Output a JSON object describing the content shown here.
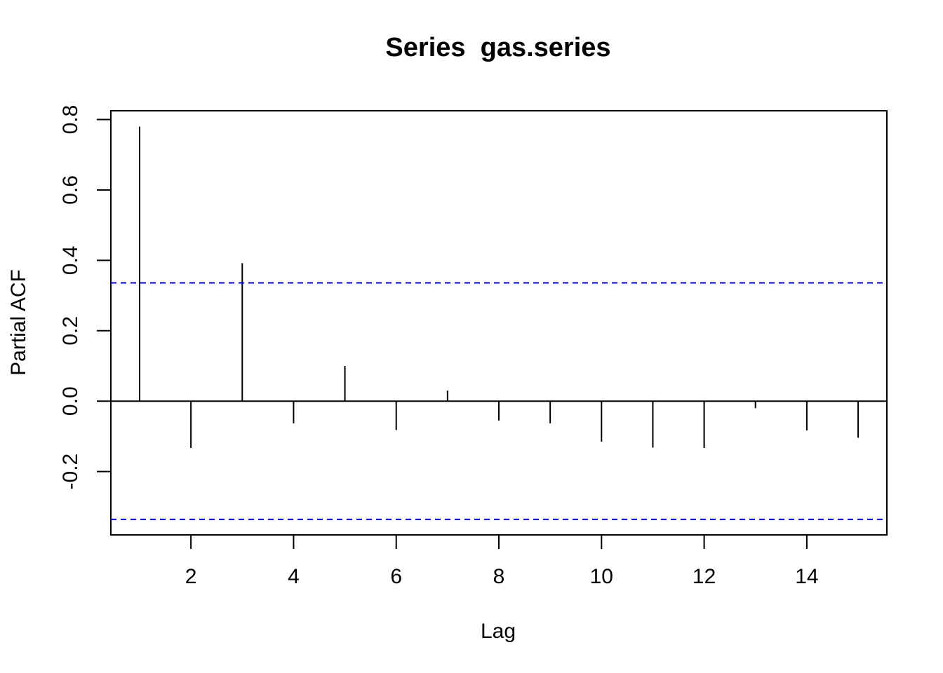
{
  "chart_data": {
    "type": "bar",
    "title": "Series  gas.series",
    "xlabel": "Lag",
    "ylabel": "Partial ACF",
    "x": [
      1,
      2,
      3,
      4,
      5,
      6,
      7,
      8,
      9,
      10,
      11,
      12,
      13,
      14,
      15
    ],
    "series": [
      {
        "values": [
          0.78,
          -0.133,
          0.392,
          -0.063,
          0.1,
          -0.082,
          0.03,
          -0.055,
          -0.063,
          -0.115,
          -0.132,
          -0.133,
          -0.02,
          -0.083,
          -0.104
        ]
      }
    ],
    "confidence_bound": 0.336,
    "xlim": [
      0.44,
      15.56
    ],
    "ylim": [
      -0.38,
      0.825
    ],
    "x_ticks": [
      2,
      4,
      6,
      8,
      10,
      12,
      14
    ],
    "x_tick_labels": [
      "2",
      "4",
      "6",
      "8",
      "10",
      "12",
      "14"
    ],
    "y_ticks": [
      -0.2,
      0.0,
      0.2,
      0.4,
      0.6,
      0.8
    ],
    "y_tick_labels": [
      "-0.2",
      "0.0",
      "0.2",
      "0.4",
      "0.6",
      "0.8"
    ],
    "grid": false,
    "colors": {
      "bars": "#000000",
      "zero_line": "#000000",
      "confidence_line": "#0000ff",
      "frame": "#000000"
    }
  }
}
